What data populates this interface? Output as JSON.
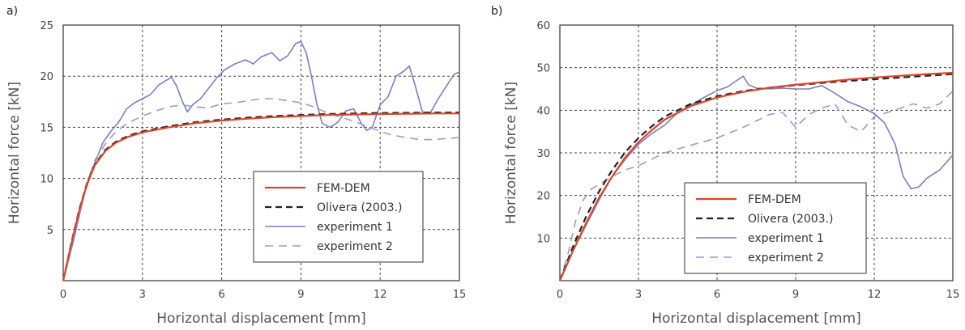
{
  "chart_data": [
    {
      "panel_label": "a)",
      "type": "line",
      "xlabel": "Horizontal displacement [mm]",
      "ylabel": "Horizontal force [kN]",
      "xlim": [
        0,
        15
      ],
      "ylim": [
        0,
        25
      ],
      "xticks": [
        0,
        3,
        6,
        9,
        12,
        15
      ],
      "yticks": [
        5,
        10,
        15,
        20,
        25
      ],
      "grid": true,
      "legend_position": "bottom-right",
      "series": [
        {
          "name": "FEM-DEM",
          "color": "#d9472b",
          "style": "solid",
          "width": 2.2,
          "points": [
            [
              0,
              0
            ],
            [
              0.3,
              3.5
            ],
            [
              0.6,
              6.8
            ],
            [
              0.9,
              9.4
            ],
            [
              1.2,
              11.3
            ],
            [
              1.6,
              12.7
            ],
            [
              2.0,
              13.5
            ],
            [
              2.5,
              14.1
            ],
            [
              3,
              14.5
            ],
            [
              4,
              15.0
            ],
            [
              5,
              15.4
            ],
            [
              6,
              15.65
            ],
            [
              7,
              15.85
            ],
            [
              8,
              16.0
            ],
            [
              9,
              16.1
            ],
            [
              10,
              16.2
            ],
            [
              11,
              16.25
            ],
            [
              12,
              16.3
            ],
            [
              13,
              16.32
            ],
            [
              14,
              16.35
            ],
            [
              15,
              16.35
            ]
          ]
        },
        {
          "name": "Olivera (2003.)",
          "color": "#222222",
          "style": "dashed",
          "width": 2.2,
          "points": [
            [
              0,
              0
            ],
            [
              0.3,
              3.6
            ],
            [
              0.6,
              6.9
            ],
            [
              0.9,
              9.5
            ],
            [
              1.2,
              11.4
            ],
            [
              1.6,
              12.8
            ],
            [
              2.0,
              13.6
            ],
            [
              2.5,
              14.2
            ],
            [
              3,
              14.6
            ],
            [
              4,
              15.1
            ],
            [
              5,
              15.5
            ],
            [
              6,
              15.75
            ],
            [
              7,
              15.95
            ],
            [
              8,
              16.1
            ],
            [
              9,
              16.2
            ],
            [
              10,
              16.3
            ],
            [
              11,
              16.35
            ],
            [
              12,
              16.4
            ],
            [
              13,
              16.42
            ],
            [
              14,
              16.45
            ],
            [
              15,
              16.45
            ]
          ]
        },
        {
          "name": "experiment 1",
          "color": "#7b7fc4",
          "style": "solid",
          "width": 1.6,
          "points": [
            [
              0,
              0
            ],
            [
              0.4,
              4
            ],
            [
              0.8,
              8.5
            ],
            [
              1.2,
              11.5
            ],
            [
              1.5,
              13.5
            ],
            [
              1.8,
              14.6
            ],
            [
              2.1,
              15.5
            ],
            [
              2.4,
              16.8
            ],
            [
              2.7,
              17.4
            ],
            [
              3,
              17.8
            ],
            [
              3.3,
              18.2
            ],
            [
              3.6,
              19.1
            ],
            [
              3.9,
              19.6
            ],
            [
              4.1,
              19.9
            ],
            [
              4.3,
              19.0
            ],
            [
              4.5,
              17.6
            ],
            [
              4.7,
              16.5
            ],
            [
              4.9,
              17.2
            ],
            [
              5.2,
              17.8
            ],
            [
              5.5,
              18.8
            ],
            [
              5.8,
              19.8
            ],
            [
              6.1,
              20.6
            ],
            [
              6.5,
              21.2
            ],
            [
              6.9,
              21.6
            ],
            [
              7.2,
              21.2
            ],
            [
              7.5,
              21.9
            ],
            [
              7.9,
              22.3
            ],
            [
              8.2,
              21.5
            ],
            [
              8.5,
              22.0
            ],
            [
              8.8,
              23.2
            ],
            [
              9.0,
              23.4
            ],
            [
              9.2,
              22.3
            ],
            [
              9.4,
              20.0
            ],
            [
              9.6,
              17.3
            ],
            [
              9.8,
              15.4
            ],
            [
              10.1,
              15.0
            ],
            [
              10.4,
              15.5
            ],
            [
              10.7,
              16.6
            ],
            [
              11.0,
              16.8
            ],
            [
              11.3,
              15.3
            ],
            [
              11.5,
              14.7
            ],
            [
              11.7,
              15.0
            ],
            [
              12.0,
              17.2
            ],
            [
              12.3,
              18.0
            ],
            [
              12.6,
              20.0
            ],
            [
              12.9,
              20.5
            ],
            [
              13.1,
              21.0
            ],
            [
              13.3,
              19.3
            ],
            [
              13.6,
              16.5
            ],
            [
              13.9,
              16.4
            ],
            [
              14.2,
              17.8
            ],
            [
              14.5,
              19.0
            ],
            [
              14.8,
              20.2
            ],
            [
              15,
              20.4
            ]
          ]
        },
        {
          "name": "experiment 2",
          "color": "#9a9ccf",
          "style": "dashed",
          "width": 1.6,
          "points": [
            [
              0,
              0
            ],
            [
              0.4,
              4.2
            ],
            [
              0.8,
              8.8
            ],
            [
              1.2,
              11.8
            ],
            [
              1.6,
              13.4
            ],
            [
              2.0,
              14.6
            ],
            [
              2.5,
              15.5
            ],
            [
              3,
              16.1
            ],
            [
              3.5,
              16.6
            ],
            [
              4,
              17.0
            ],
            [
              4.5,
              17.2
            ],
            [
              5,
              17.0
            ],
            [
              5.5,
              16.9
            ],
            [
              6,
              17.3
            ],
            [
              6.5,
              17.4
            ],
            [
              7,
              17.6
            ],
            [
              7.5,
              17.8
            ],
            [
              8,
              17.8
            ],
            [
              8.5,
              17.6
            ],
            [
              9,
              17.4
            ],
            [
              9.5,
              17.0
            ],
            [
              10,
              16.4
            ],
            [
              10.5,
              16.0
            ],
            [
              11,
              15.6
            ],
            [
              11.5,
              15.1
            ],
            [
              12,
              14.6
            ],
            [
              12.5,
              14.2
            ],
            [
              13,
              14.0
            ],
            [
              13.5,
              13.8
            ],
            [
              14,
              13.8
            ],
            [
              14.5,
              13.9
            ],
            [
              15,
              14.0
            ]
          ]
        }
      ]
    },
    {
      "panel_label": "b)",
      "type": "line",
      "xlabel": "Horizontal displacement [mm]",
      "ylabel": "Horizontal force [kN]",
      "xlim": [
        0,
        15
      ],
      "ylim": [
        0,
        60
      ],
      "xticks": [
        0,
        3,
        6,
        9,
        12,
        15
      ],
      "yticks": [
        10,
        20,
        30,
        40,
        50,
        60
      ],
      "grid": true,
      "legend_position": "bottom-center",
      "series": [
        {
          "name": "FEM-DEM",
          "color": "#d9472b",
          "style": "solid",
          "width": 2.2,
          "points": [
            [
              0,
              0
            ],
            [
              0.5,
              7
            ],
            [
              1,
              13.5
            ],
            [
              1.5,
              19.5
            ],
            [
              2,
              24.5
            ],
            [
              2.5,
              29
            ],
            [
              3,
              32.5
            ],
            [
              3.5,
              35.3
            ],
            [
              4,
              37.8
            ],
            [
              5,
              41.0
            ],
            [
              6,
              43.0
            ],
            [
              7,
              44.3
            ],
            [
              8,
              45.3
            ],
            [
              9,
              46.0
            ],
            [
              10,
              46.6
            ],
            [
              11,
              47.2
            ],
            [
              12,
              47.7
            ],
            [
              13,
              48.1
            ],
            [
              14,
              48.5
            ],
            [
              15,
              48.8
            ]
          ]
        },
        {
          "name": "Olivera (2003.)",
          "color": "#222222",
          "style": "dashed",
          "width": 2.2,
          "points": [
            [
              0,
              0
            ],
            [
              0.5,
              8
            ],
            [
              1,
              15
            ],
            [
              1.5,
              21
            ],
            [
              2,
              26
            ],
            [
              2.5,
              30.2
            ],
            [
              3,
              33.5
            ],
            [
              3.5,
              36.2
            ],
            [
              4,
              38.5
            ],
            [
              5,
              41.5
            ],
            [
              6,
              43.3
            ],
            [
              7,
              44.5
            ],
            [
              8,
              45.3
            ],
            [
              9,
              45.9
            ],
            [
              10,
              46.4
            ],
            [
              11,
              46.9
            ],
            [
              12,
              47.3
            ],
            [
              13,
              47.7
            ],
            [
              14,
              48.1
            ],
            [
              15,
              48.5
            ]
          ]
        },
        {
          "name": "experiment 1",
          "color": "#7b7fc4",
          "style": "solid",
          "width": 1.6,
          "points": [
            [
              0,
              0
            ],
            [
              0.5,
              7
            ],
            [
              1,
              13
            ],
            [
              1.5,
              19
            ],
            [
              2,
              24.5
            ],
            [
              2.5,
              28.5
            ],
            [
              3,
              32
            ],
            [
              3.5,
              34.5
            ],
            [
              4,
              36.5
            ],
            [
              4.5,
              39.5
            ],
            [
              5,
              41.2
            ],
            [
              5.5,
              43.0
            ],
            [
              6,
              44.6
            ],
            [
              6.4,
              45.5
            ],
            [
              6.8,
              47.2
            ],
            [
              7.0,
              48.0
            ],
            [
              7.2,
              46.0
            ],
            [
              7.5,
              45.2
            ],
            [
              8,
              45.0
            ],
            [
              8.5,
              45.2
            ],
            [
              9,
              45.0
            ],
            [
              9.5,
              45.0
            ],
            [
              10,
              45.8
            ],
            [
              10.5,
              44.0
            ],
            [
              11,
              42.0
            ],
            [
              11.5,
              40.8
            ],
            [
              12,
              39.2
            ],
            [
              12.4,
              37.0
            ],
            [
              12.8,
              32.0
            ],
            [
              13.1,
              24.5
            ],
            [
              13.4,
              21.6
            ],
            [
              13.7,
              22.0
            ],
            [
              14,
              24.0
            ],
            [
              14.5,
              26.0
            ],
            [
              15,
              29.5
            ]
          ]
        },
        {
          "name": "experiment 2",
          "color": "#9a9ccf",
          "style": "dashed",
          "width": 1.6,
          "points": [
            [
              0,
              0
            ],
            [
              0.3,
              6
            ],
            [
              0.6,
              14
            ],
            [
              0.9,
              19
            ],
            [
              1.2,
              21.5
            ],
            [
              1.6,
              23
            ],
            [
              2,
              24.5
            ],
            [
              2.5,
              26
            ],
            [
              3,
              27
            ],
            [
              3.5,
              28.5
            ],
            [
              4,
              30
            ],
            [
              5,
              31.8
            ],
            [
              6,
              33.5
            ],
            [
              7,
              36
            ],
            [
              7.5,
              37.5
            ],
            [
              8,
              39
            ],
            [
              8.5,
              39.5
            ],
            [
              9,
              36.0
            ],
            [
              9.5,
              39.0
            ],
            [
              10,
              40.5
            ],
            [
              10.5,
              41.5
            ],
            [
              11,
              36.5
            ],
            [
              11.5,
              35.0
            ],
            [
              12,
              38.5
            ],
            [
              13,
              40.5
            ],
            [
              13.5,
              41.5
            ],
            [
              14,
              40.5
            ],
            [
              14.5,
              41.5
            ],
            [
              15,
              44.5
            ]
          ]
        }
      ]
    }
  ]
}
